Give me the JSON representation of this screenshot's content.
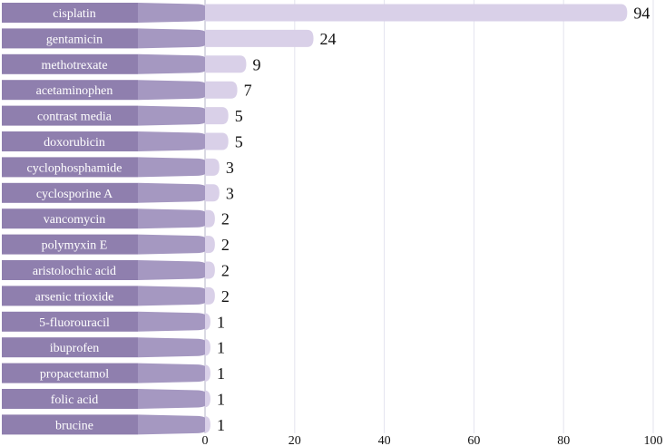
{
  "chart_data": {
    "type": "bar",
    "orientation": "horizontal",
    "categories": [
      "cisplatin",
      "gentamicin",
      "methotrexate",
      "acetaminophen",
      "contrast media",
      "doxorubicin",
      "cyclophosphamide",
      "cyclosporine A",
      "vancomycin",
      "polymyxin E",
      "aristolochic acid",
      "arsenic trioxide",
      "5-fluorouracil",
      "ibuprofen",
      "propacetamol",
      "folic acid",
      "brucine"
    ],
    "values": [
      94,
      24,
      9,
      7,
      5,
      5,
      3,
      3,
      2,
      2,
      2,
      2,
      1,
      1,
      1,
      1,
      1
    ],
    "xlim": [
      0,
      100
    ],
    "xticks": [
      0,
      20,
      40,
      60,
      80,
      100
    ],
    "title": "",
    "xlabel": "",
    "ylabel": "",
    "grid": "vertical",
    "colors": {
      "label_block": "#8f7fae",
      "bar": "#d9d0e8",
      "grid": "#e3e3ee"
    }
  }
}
